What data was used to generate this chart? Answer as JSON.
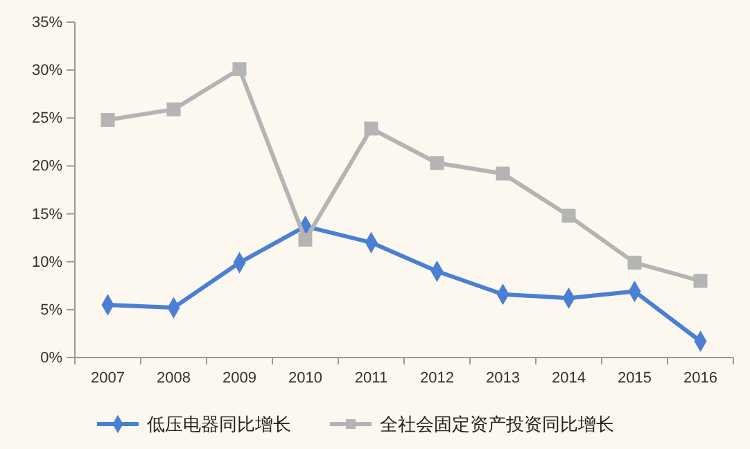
{
  "chart_data": {
    "type": "line",
    "categories": [
      "2007",
      "2008",
      "2009",
      "2010",
      "2011",
      "2012",
      "2013",
      "2014",
      "2015",
      "2016"
    ],
    "series": [
      {
        "name": "低压电器同比增长",
        "color": "#4a7fd4",
        "marker": "diamond",
        "values": [
          5.5,
          5.2,
          9.9,
          13.7,
          12.0,
          9.0,
          6.6,
          6.2,
          6.9,
          1.7
        ]
      },
      {
        "name": "全社会固定资产投资同比增长",
        "color": "#b4b4b4",
        "marker": "square",
        "values": [
          24.8,
          25.9,
          30.1,
          12.3,
          23.9,
          20.3,
          19.2,
          14.8,
          9.9,
          8.0
        ]
      }
    ],
    "ylim": [
      0,
      35
    ],
    "yticks": [
      {
        "value": 0,
        "label": "0%"
      },
      {
        "value": 5,
        "label": "5%"
      },
      {
        "value": 10,
        "label": "10%"
      },
      {
        "value": 15,
        "label": "15%"
      },
      {
        "value": 20,
        "label": "20%"
      },
      {
        "value": 25,
        "label": "25%"
      },
      {
        "value": 30,
        "label": "30%"
      },
      {
        "value": 35,
        "label": "35%"
      }
    ],
    "grid": false,
    "legend": "bottom"
  }
}
